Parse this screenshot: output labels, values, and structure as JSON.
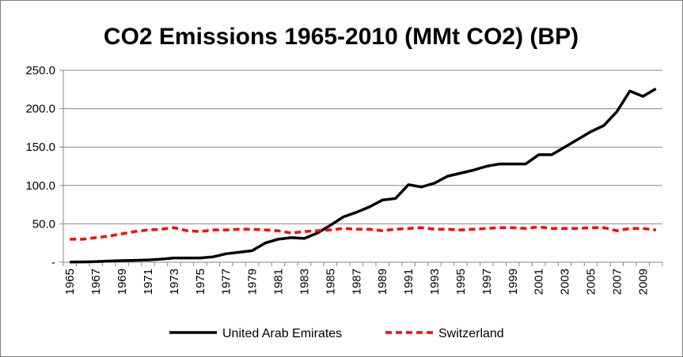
{
  "chart_data": {
    "type": "line",
    "title": "CO2 Emissions 1965-2010 (MMt CO2) (BP)",
    "xlabel": "",
    "ylabel": "",
    "ylim": [
      0,
      250
    ],
    "yticks": [
      0,
      50,
      100,
      150,
      200,
      250
    ],
    "ytick_labels": [
      "-",
      "50.0",
      "100.0",
      "150.0",
      "200.0",
      "250.0"
    ],
    "grid": "horizontal",
    "legend_position": "bottom",
    "x": [
      1965,
      1966,
      1967,
      1968,
      1969,
      1970,
      1971,
      1972,
      1973,
      1974,
      1975,
      1976,
      1977,
      1978,
      1979,
      1980,
      1981,
      1982,
      1983,
      1984,
      1985,
      1986,
      1987,
      1988,
      1989,
      1990,
      1991,
      1992,
      1993,
      1994,
      1995,
      1996,
      1997,
      1998,
      1999,
      2000,
      2001,
      2002,
      2003,
      2004,
      2005,
      2006,
      2007,
      2008,
      2009,
      2010
    ],
    "xtick_labels": [
      "1965",
      "1967",
      "1969",
      "1971",
      "1973",
      "1975",
      "1977",
      "1979",
      "1981",
      "1983",
      "1985",
      "1987",
      "1989",
      "1991",
      "1993",
      "1995",
      "1997",
      "1999",
      "2001",
      "2003",
      "2005",
      "2007",
      "2009"
    ],
    "series": [
      {
        "name": "United Arab Emirates",
        "color": "#000000",
        "style": "solid",
        "values": [
          0.2,
          0.4,
          0.8,
          1.5,
          2,
          2.5,
          3,
          4,
          5.5,
          5.5,
          5.5,
          7,
          11,
          13,
          15,
          25,
          30,
          32,
          31,
          38,
          48,
          59,
          65,
          72,
          81,
          83,
          101,
          98,
          103,
          112,
          116,
          120,
          125,
          128,
          128,
          128,
          140,
          140,
          150,
          160,
          170,
          178,
          196,
          223,
          216,
          226
        ]
      },
      {
        "name": "Switzerland",
        "color": "#ff0000",
        "style": "dashed",
        "values": [
          30,
          30,
          32,
          34,
          37,
          40,
          42,
          43,
          45,
          41,
          40,
          42,
          42,
          43,
          43,
          42,
          41,
          38,
          40,
          41,
          42,
          44,
          43,
          43,
          41,
          43,
          44,
          45,
          43,
          43,
          42,
          43,
          44,
          45,
          45,
          44,
          46,
          44,
          44,
          44,
          45,
          45,
          41,
          44,
          44,
          42
        ]
      }
    ]
  }
}
